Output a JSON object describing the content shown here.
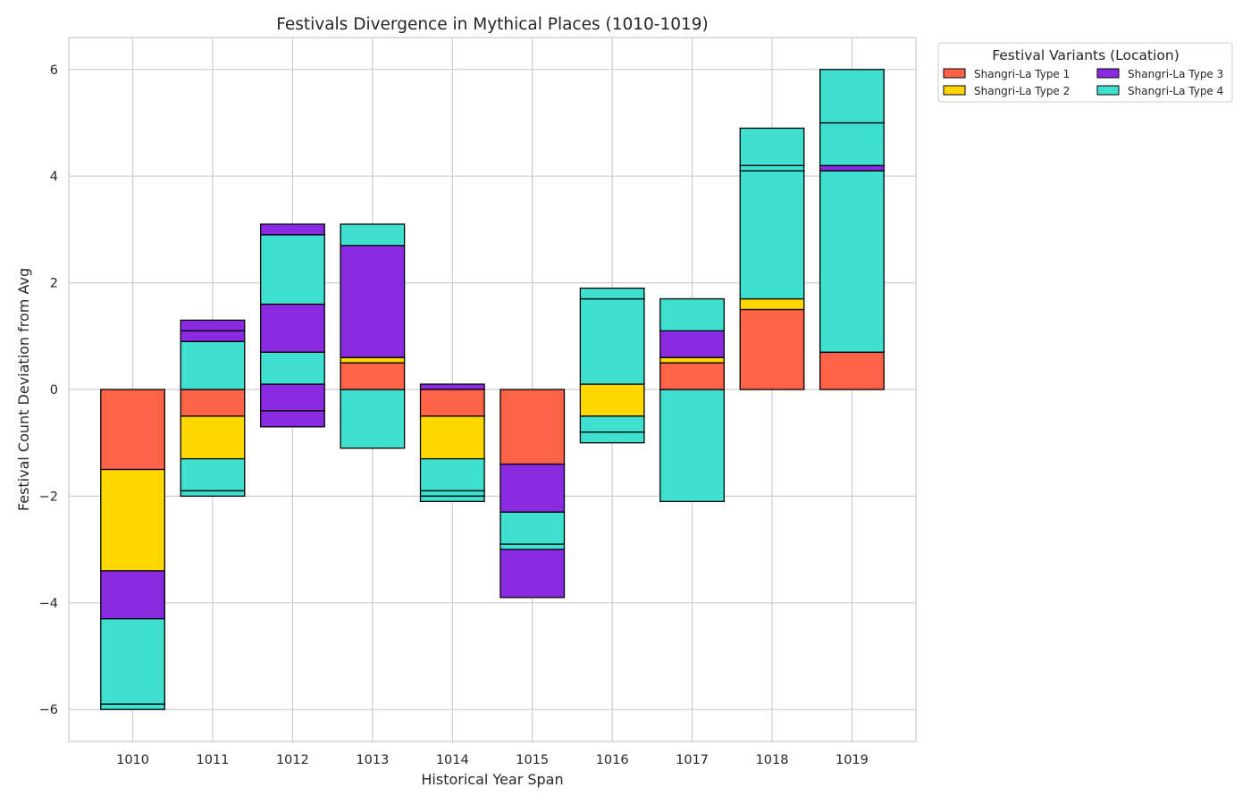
{
  "chart_data": {
    "type": "bar",
    "title": "Festivals Divergence in Mythical Places (1010-1019)",
    "xlabel": "Historical Year Span",
    "ylabel": "Festival Count Deviation from Avg",
    "categories": [
      "1010",
      "1011",
      "1012",
      "1013",
      "1014",
      "1015",
      "1016",
      "1017",
      "1018",
      "1019"
    ],
    "ylim": [
      -6.6,
      6.6
    ],
    "yticks": [
      -6,
      -4,
      -2,
      0,
      2,
      4,
      6
    ],
    "ytick_labels": [
      "−6",
      "−4",
      "−2",
      "0",
      "2",
      "4",
      "6"
    ],
    "grid": true,
    "legend": {
      "title": "Festival Variants (Location)",
      "placement": "outside-top-right",
      "columns": 2
    },
    "segments": [
      {
        "category": "1010",
        "series": "Shangri-La Type 1",
        "bottom": 0,
        "top": -1.5
      },
      {
        "category": "1010",
        "series": "Shangri-La Type 2",
        "bottom": -1.5,
        "top": -3.4
      },
      {
        "category": "1010",
        "series": "Shangri-La Type 3",
        "bottom": -3.4,
        "top": -4.3
      },
      {
        "category": "1010",
        "series": "Shangri-La Type 4",
        "bottom": -4.3,
        "top": -5.9
      },
      {
        "category": "1010",
        "series": "Shangri-La Type 4",
        "bottom": -5.9,
        "top": -6.0
      },
      {
        "category": "1011",
        "series": "Shangri-La Type 1",
        "bottom": 0,
        "top": -0.5
      },
      {
        "category": "1011",
        "series": "Shangri-La Type 2",
        "bottom": -0.5,
        "top": -1.3
      },
      {
        "category": "1011",
        "series": "Shangri-La Type 4",
        "bottom": -1.3,
        "top": -1.9
      },
      {
        "category": "1011",
        "series": "Shangri-La Type 4",
        "bottom": -1.9,
        "top": -2.0
      },
      {
        "category": "1011",
        "series": "Shangri-La Type 4",
        "bottom": 0,
        "top": 0.9
      },
      {
        "category": "1011",
        "series": "Shangri-La Type 3",
        "bottom": 0.9,
        "top": 1.1
      },
      {
        "category": "1011",
        "series": "Shangri-La Type 3",
        "bottom": 1.1,
        "top": 1.3
      },
      {
        "category": "1012",
        "series": "Shangri-La Type 3",
        "bottom": 0.1,
        "top": -0.4
      },
      {
        "category": "1012",
        "series": "Shangri-La Type 3",
        "bottom": -0.4,
        "top": -0.7
      },
      {
        "category": "1012",
        "series": "Shangri-La Type 4",
        "bottom": 0.1,
        "top": 0.7
      },
      {
        "category": "1012",
        "series": "Shangri-La Type 3",
        "bottom": 0.7,
        "top": 1.6
      },
      {
        "category": "1012",
        "series": "Shangri-La Type 4",
        "bottom": 1.6,
        "top": 2.9
      },
      {
        "category": "1012",
        "series": "Shangri-La Type 3",
        "bottom": 2.9,
        "top": 3.1
      },
      {
        "category": "1013",
        "series": "Shangri-La Type 4",
        "bottom": 0,
        "top": -1.1
      },
      {
        "category": "1013",
        "series": "Shangri-La Type 1",
        "bottom": 0,
        "top": 0.5
      },
      {
        "category": "1013",
        "series": "Shangri-La Type 2",
        "bottom": 0.5,
        "top": 0.6
      },
      {
        "category": "1013",
        "series": "Shangri-La Type 3",
        "bottom": 0.6,
        "top": 2.7
      },
      {
        "category": "1013",
        "series": "Shangri-La Type 4",
        "bottom": 2.7,
        "top": 3.1
      },
      {
        "category": "1014",
        "series": "Shangri-La Type 3",
        "bottom": 0,
        "top": 0.1
      },
      {
        "category": "1014",
        "series": "Shangri-La Type 1",
        "bottom": 0,
        "top": -0.5
      },
      {
        "category": "1014",
        "series": "Shangri-La Type 2",
        "bottom": -0.5,
        "top": -1.3
      },
      {
        "category": "1014",
        "series": "Shangri-La Type 4",
        "bottom": -1.3,
        "top": -1.9
      },
      {
        "category": "1014",
        "series": "Shangri-La Type 4",
        "bottom": -1.9,
        "top": -2.0
      },
      {
        "category": "1014",
        "series": "Shangri-La Type 4",
        "bottom": -2.0,
        "top": -2.1
      },
      {
        "category": "1015",
        "series": "Shangri-La Type 1",
        "bottom": 0,
        "top": -1.4
      },
      {
        "category": "1015",
        "series": "Shangri-La Type 3",
        "bottom": -1.4,
        "top": -2.3
      },
      {
        "category": "1015",
        "series": "Shangri-La Type 4",
        "bottom": -2.3,
        "top": -2.9
      },
      {
        "category": "1015",
        "series": "Shangri-La Type 4",
        "bottom": -2.9,
        "top": -3.0
      },
      {
        "category": "1015",
        "series": "Shangri-La Type 3",
        "bottom": -3.0,
        "top": -3.9
      },
      {
        "category": "1016",
        "series": "Shangri-La Type 2",
        "bottom": 0.1,
        "top": -0.5
      },
      {
        "category": "1016",
        "series": "Shangri-La Type 4",
        "bottom": -0.5,
        "top": -0.8
      },
      {
        "category": "1016",
        "series": "Shangri-La Type 4",
        "bottom": -0.8,
        "top": -1.0
      },
      {
        "category": "1016",
        "series": "Shangri-La Type 4",
        "bottom": 0.1,
        "top": 1.7
      },
      {
        "category": "1016",
        "series": "Shangri-La Type 4",
        "bottom": 1.7,
        "top": 1.9
      },
      {
        "category": "1017",
        "series": "Shangri-La Type 4",
        "bottom": 0,
        "top": -2.1
      },
      {
        "category": "1017",
        "series": "Shangri-La Type 1",
        "bottom": 0,
        "top": 0.5
      },
      {
        "category": "1017",
        "series": "Shangri-La Type 2",
        "bottom": 0.5,
        "top": 0.6
      },
      {
        "category": "1017",
        "series": "Shangri-La Type 3",
        "bottom": 0.6,
        "top": 1.1
      },
      {
        "category": "1017",
        "series": "Shangri-La Type 4",
        "bottom": 1.1,
        "top": 1.7
      },
      {
        "category": "1018",
        "series": "Shangri-La Type 1",
        "bottom": 0,
        "top": 1.5
      },
      {
        "category": "1018",
        "series": "Shangri-La Type 2",
        "bottom": 1.5,
        "top": 1.7
      },
      {
        "category": "1018",
        "series": "Shangri-La Type 4",
        "bottom": 1.7,
        "top": 4.1
      },
      {
        "category": "1018",
        "series": "Shangri-La Type 4",
        "bottom": 4.1,
        "top": 4.2
      },
      {
        "category": "1018",
        "series": "Shangri-La Type 4",
        "bottom": 4.2,
        "top": 4.9
      },
      {
        "category": "1019",
        "series": "Shangri-La Type 1",
        "bottom": 0,
        "top": 0.7
      },
      {
        "category": "1019",
        "series": "Shangri-La Type 4",
        "bottom": 0.7,
        "top": 4.1
      },
      {
        "category": "1019",
        "series": "Shangri-La Type 3",
        "bottom": 4.1,
        "top": 4.2
      },
      {
        "category": "1019",
        "series": "Shangri-La Type 4",
        "bottom": 4.2,
        "top": 5.0
      },
      {
        "category": "1019",
        "series": "Shangri-La Type 4",
        "bottom": 5.0,
        "top": 6.0
      }
    ],
    "series": [
      {
        "name": "Shangri-La Type 1",
        "color": "#FF6347"
      },
      {
        "name": "Shangri-La Type 2",
        "color": "#FFD700"
      },
      {
        "name": "Shangri-La Type 3",
        "color": "#8A2BE2"
      },
      {
        "name": "Shangri-La Type 4",
        "color": "#40E0D0"
      }
    ]
  }
}
